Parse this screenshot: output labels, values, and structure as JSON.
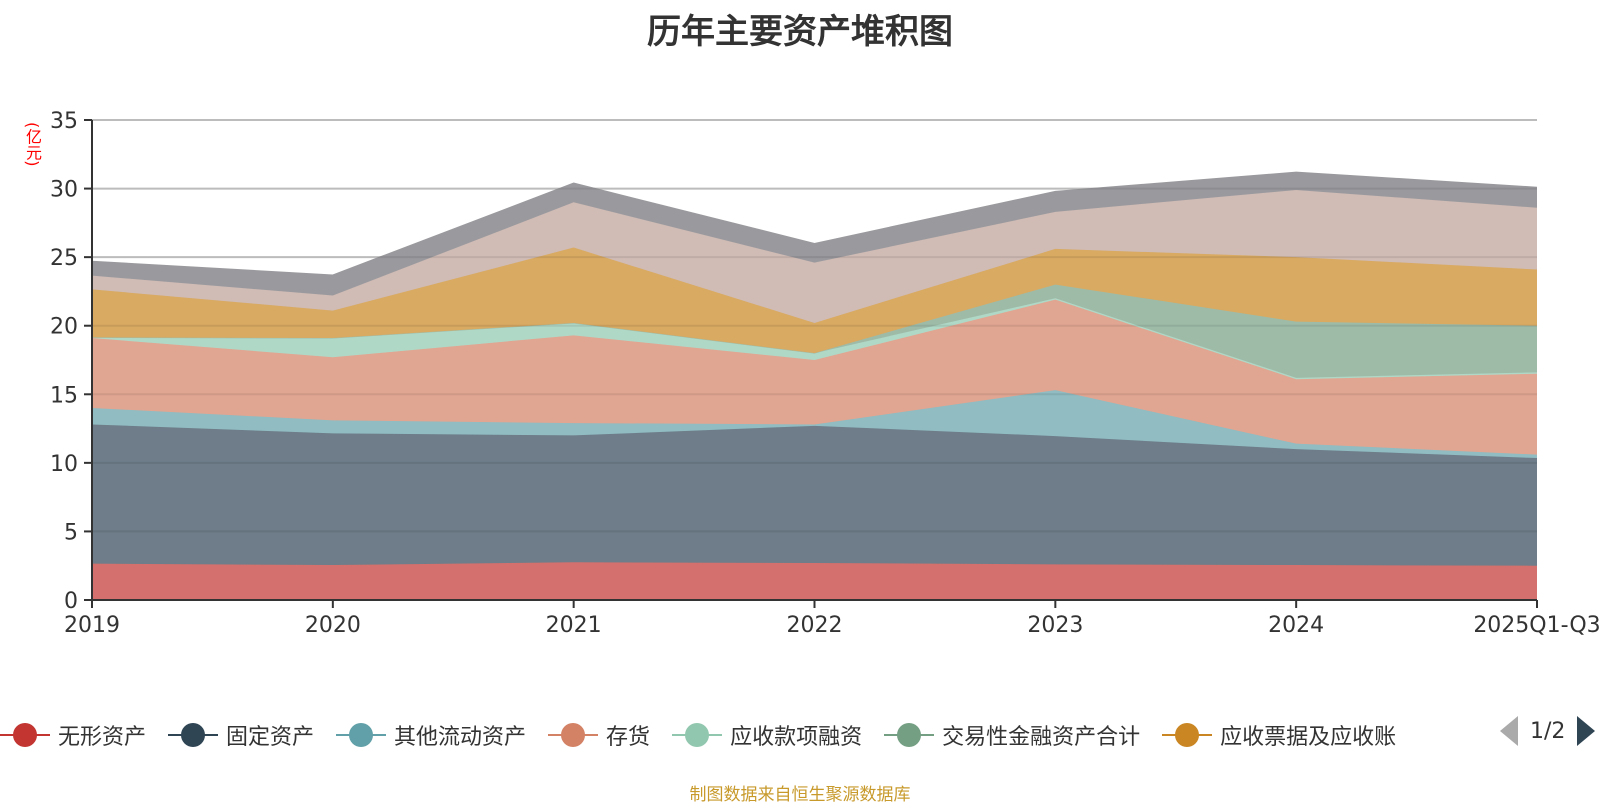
{
  "chart_data": {
    "type": "area",
    "stacked": true,
    "title": "历年主要资产堆积图",
    "ylabel": "(亿元)",
    "xlabel": "",
    "categories": [
      "2019",
      "2020",
      "2021",
      "2022",
      "2023",
      "2024",
      "2025Q1-Q3"
    ],
    "ylim": [
      0,
      35
    ],
    "yticks": [
      0,
      5,
      10,
      15,
      20,
      25,
      30,
      35
    ],
    "grid": true,
    "legend_position": "bottom",
    "series": [
      {
        "name": "无形资产",
        "color": "#c23531",
        "fill": "#d4706d",
        "values": [
          2.65,
          2.55,
          2.75,
          2.7,
          2.6,
          2.55,
          2.5
        ]
      },
      {
        "name": "固定资产",
        "color": "#2f4554",
        "fill": "#6e7d89",
        "values": [
          10.15,
          9.6,
          9.25,
          10.0,
          9.35,
          8.45,
          7.85
        ]
      },
      {
        "name": "其他流动资产",
        "color": "#61a0a8",
        "fill": "#90bcc2",
        "values": [
          1.2,
          0.95,
          0.9,
          0.1,
          3.35,
          0.4,
          0.25
        ]
      },
      {
        "name": "存货",
        "color": "#d48265",
        "fill": "#e0a692",
        "values": [
          5.1,
          4.6,
          6.4,
          4.7,
          6.6,
          4.7,
          5.9
        ]
      },
      {
        "name": "应收款项融资",
        "color": "#91c7ae",
        "fill": "#b0d8c6",
        "values": [
          0.05,
          1.4,
          0.9,
          0.5,
          0.1,
          0.1,
          0.1
        ]
      },
      {
        "name": "交易性金融资产合计",
        "color": "#749f83",
        "fill": "#9ebba8",
        "values": [
          0,
          0,
          0,
          0,
          1.0,
          4.1,
          3.4
        ]
      },
      {
        "name": "应收票据及应收账",
        "color": "#ca8622",
        "fill": "#d8aa62",
        "values": [
          3.5,
          2.0,
          5.5,
          2.2,
          2.6,
          4.7,
          4.1
        ]
      },
      {
        "name": "",
        "color": "#bda29a",
        "fill": "#d0bbb5",
        "values": [
          1.0,
          1.1,
          3.3,
          4.4,
          2.7,
          4.9,
          4.5
        ]
      },
      {
        "name": "",
        "color": "#6e7074",
        "fill": "#9a9a9e",
        "values": [
          1.05,
          1.5,
          1.4,
          1.4,
          1.5,
          1.3,
          1.5
        ]
      }
    ]
  },
  "legend": {
    "items": [
      {
        "label": "无形资产",
        "color": "#c23531"
      },
      {
        "label": "固定资产",
        "color": "#2f4554"
      },
      {
        "label": "其他流动资产",
        "color": "#61a0a8"
      },
      {
        "label": "存货",
        "color": "#d48265"
      },
      {
        "label": "应收款项融资",
        "color": "#91c7ae"
      },
      {
        "label": "交易性金融资产合计",
        "color": "#749f83"
      },
      {
        "label": "应收票据及应收账",
        "color": "#ca8622"
      }
    ],
    "page": "1/2"
  },
  "source": "制图数据来自恒生聚源数据库"
}
